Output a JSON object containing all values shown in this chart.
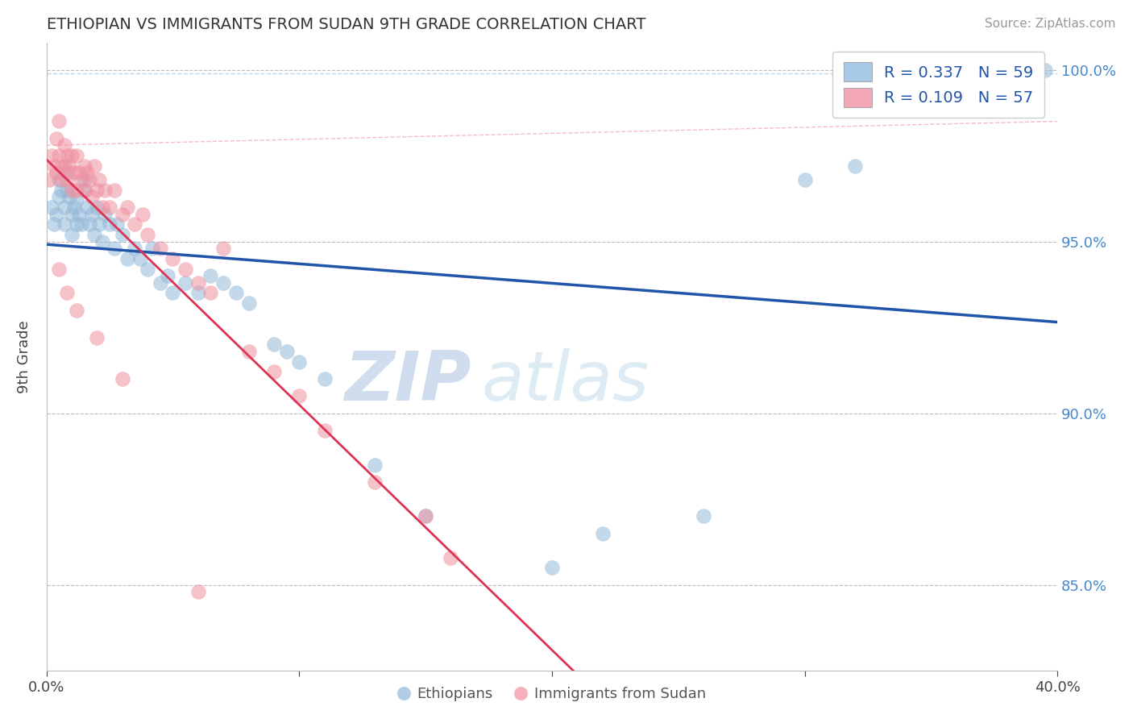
{
  "title": "ETHIOPIAN VS IMMIGRANTS FROM SUDAN 9TH GRADE CORRELATION CHART",
  "source": "Source: ZipAtlas.com",
  "ylabel": "9th Grade",
  "x_min": 0.0,
  "x_max": 0.4,
  "y_min": 0.825,
  "y_max": 1.008,
  "x_ticks": [
    0.0,
    0.1,
    0.2,
    0.3,
    0.4
  ],
  "x_tick_labels": [
    "0.0%",
    "",
    "",
    "",
    "40.0%"
  ],
  "y_ticks": [
    0.85,
    0.9,
    0.95,
    1.0
  ],
  "y_tick_labels": [
    "85.0%",
    "90.0%",
    "95.0%",
    "100.0%"
  ],
  "legend_entries": [
    {
      "label": "R = 0.337   N = 59",
      "color": "#a8c8e8"
    },
    {
      "label": "R = 0.109   N = 57",
      "color": "#f4a8b8"
    }
  ],
  "legend_bottom": [
    "Ethiopians",
    "Immigrants from Sudan"
  ],
  "blue_color": "#92b8d8",
  "pink_color": "#f090a0",
  "blue_line_color": "#2255aa",
  "pink_line_color": "#dd3355",
  "blue_dash_color": "#92b8d8",
  "pink_dash_color": "#f090a0",
  "watermark_zip": "ZIP",
  "watermark_atlas": "atlas",
  "blue_scatter_x": [
    0.002,
    0.003,
    0.004,
    0.005,
    0.005,
    0.006,
    0.007,
    0.007,
    0.008,
    0.008,
    0.009,
    0.01,
    0.01,
    0.011,
    0.012,
    0.012,
    0.013,
    0.014,
    0.015,
    0.015,
    0.016,
    0.017,
    0.018,
    0.019,
    0.02,
    0.021,
    0.022,
    0.023,
    0.025,
    0.027,
    0.028,
    0.03,
    0.032,
    0.035,
    0.037,
    0.04,
    0.042,
    0.045,
    0.048,
    0.05,
    0.055,
    0.06,
    0.065,
    0.07,
    0.075,
    0.08,
    0.09,
    0.095,
    0.1,
    0.11,
    0.13,
    0.15,
    0.2,
    0.22,
    0.26,
    0.3,
    0.32,
    0.38,
    0.395
  ],
  "blue_scatter_y": [
    0.96,
    0.955,
    0.958,
    0.963,
    0.968,
    0.965,
    0.955,
    0.96,
    0.97,
    0.965,
    0.963,
    0.958,
    0.952,
    0.96,
    0.955,
    0.962,
    0.958,
    0.955,
    0.965,
    0.968,
    0.96,
    0.955,
    0.958,
    0.952,
    0.96,
    0.955,
    0.95,
    0.958,
    0.955,
    0.948,
    0.955,
    0.952,
    0.945,
    0.948,
    0.945,
    0.942,
    0.948,
    0.938,
    0.94,
    0.935,
    0.938,
    0.935,
    0.94,
    0.938,
    0.935,
    0.932,
    0.92,
    0.918,
    0.915,
    0.91,
    0.885,
    0.87,
    0.855,
    0.865,
    0.87,
    0.968,
    0.972,
    0.998,
    1.0
  ],
  "pink_scatter_x": [
    0.001,
    0.002,
    0.003,
    0.004,
    0.004,
    0.005,
    0.005,
    0.006,
    0.006,
    0.007,
    0.007,
    0.008,
    0.008,
    0.009,
    0.01,
    0.01,
    0.011,
    0.012,
    0.012,
    0.013,
    0.014,
    0.015,
    0.015,
    0.016,
    0.017,
    0.018,
    0.019,
    0.02,
    0.021,
    0.022,
    0.023,
    0.025,
    0.027,
    0.03,
    0.032,
    0.035,
    0.038,
    0.04,
    0.045,
    0.05,
    0.055,
    0.06,
    0.065,
    0.07,
    0.08,
    0.09,
    0.1,
    0.11,
    0.13,
    0.15,
    0.16,
    0.005,
    0.008,
    0.012,
    0.02,
    0.03,
    0.06
  ],
  "pink_scatter_y": [
    0.968,
    0.975,
    0.972,
    0.98,
    0.97,
    0.975,
    0.985,
    0.972,
    0.968,
    0.978,
    0.972,
    0.975,
    0.968,
    0.972,
    0.965,
    0.975,
    0.97,
    0.965,
    0.975,
    0.97,
    0.968,
    0.972,
    0.965,
    0.97,
    0.968,
    0.963,
    0.972,
    0.965,
    0.968,
    0.96,
    0.965,
    0.96,
    0.965,
    0.958,
    0.96,
    0.955,
    0.958,
    0.952,
    0.948,
    0.945,
    0.942,
    0.938,
    0.935,
    0.948,
    0.918,
    0.912,
    0.905,
    0.895,
    0.88,
    0.87,
    0.858,
    0.942,
    0.935,
    0.93,
    0.922,
    0.91,
    0.848
  ]
}
